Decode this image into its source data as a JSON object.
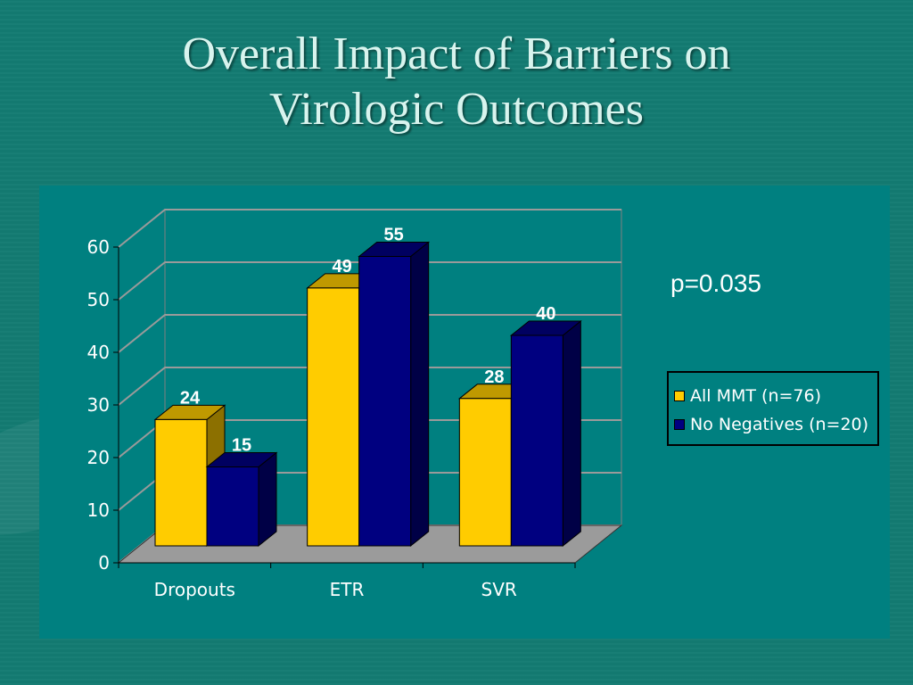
{
  "slide": {
    "title_line1": "Overall Impact of Barriers on",
    "title_line2": "Virologic Outcomes",
    "pvalue_text": "p=0.035"
  },
  "colors": {
    "background": "#137b72",
    "panel": "#008080",
    "series1": "#ffcc00",
    "series2": "#000080"
  },
  "chart_data": {
    "type": "bar",
    "categories": [
      "Dropouts",
      "ETR",
      "SVR"
    ],
    "series": [
      {
        "name": "All MMT (n=76)",
        "values": [
          24,
          49,
          28
        ],
        "color": "#ffcc00"
      },
      {
        "name": "No Negatives (n=20)",
        "values": [
          15,
          55,
          40
        ],
        "color": "#000080"
      }
    ],
    "yticks": [
      "0",
      "10",
      "20",
      "30",
      "40",
      "50",
      "60"
    ],
    "ylim": [
      0,
      60
    ],
    "grid": true,
    "three_d": true,
    "legend_position": "right",
    "title": "",
    "xlabel": "",
    "ylabel": ""
  }
}
